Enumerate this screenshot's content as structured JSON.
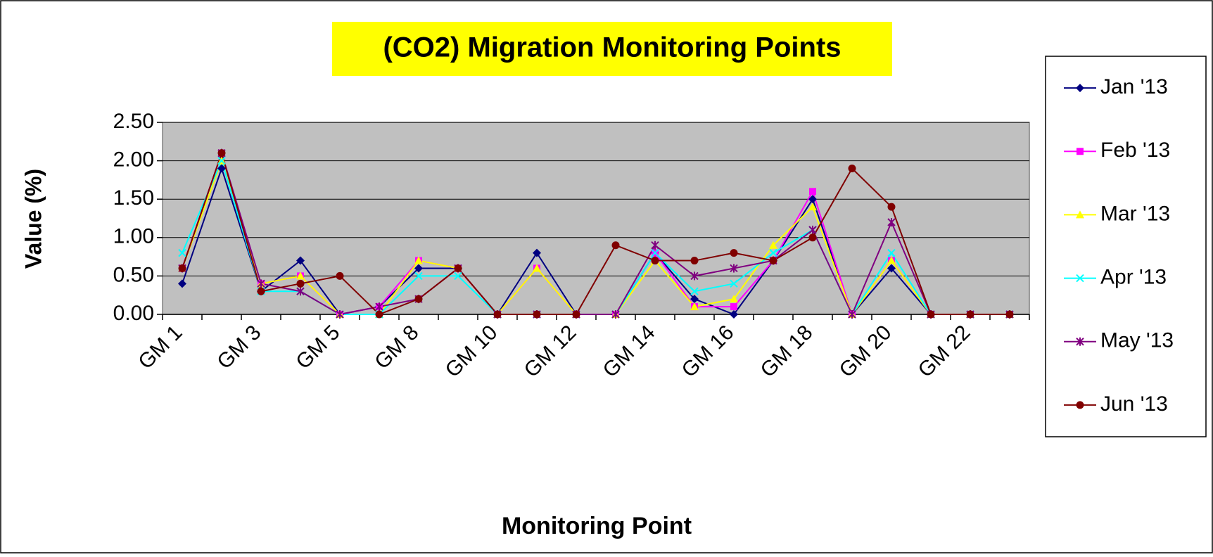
{
  "chart_data": {
    "type": "line",
    "title": "(CO2) Migration Monitoring Points",
    "x_label": "Monitoring Point",
    "y_label": "Value (%)",
    "categories": [
      "GM 1",
      null,
      "GM 3",
      null,
      "GM 5",
      null,
      "GM 8",
      null,
      "GM 10",
      null,
      "GM 12",
      null,
      "GM 14",
      null,
      "GM 16",
      null,
      "GM 18",
      null,
      "GM 20",
      null,
      "GM 22",
      null
    ],
    "ylim": [
      0,
      2.5
    ],
    "yticks": [
      {
        "value": 0,
        "label": "0.00"
      },
      {
        "value": 0.5,
        "label": "0.50"
      },
      {
        "value": 1,
        "label": "1.00"
      },
      {
        "value": 1.5,
        "label": "1.50"
      },
      {
        "value": 2,
        "label": "2.00"
      },
      {
        "value": 2.5,
        "label": "2.50"
      }
    ],
    "grid": true,
    "legend": "right",
    "series": [
      {
        "name": "Jan '13",
        "color": "#000080",
        "marker": "diamond",
        "values": [
          0.4,
          1.9,
          0.3,
          0.7,
          0,
          0.1,
          0.6,
          0.6,
          0,
          0.8,
          0,
          0,
          0.8,
          0.2,
          0,
          0.7,
          1.5,
          0,
          0.6,
          0,
          0,
          0
        ]
      },
      {
        "name": "Feb '13",
        "color": "#FF00FF",
        "marker": "square",
        "values": [
          0.6,
          2.1,
          0.4,
          0.5,
          0,
          0.1,
          0.7,
          0.6,
          0,
          0.6,
          0,
          0,
          0.8,
          0.1,
          0.1,
          0.7,
          1.6,
          0,
          0.7,
          0,
          0,
          0
        ]
      },
      {
        "name": "Mar '13",
        "color": "#FFFF00",
        "marker": "triangle",
        "values": [
          0.6,
          2.0,
          0.4,
          0.5,
          0,
          0,
          0.7,
          0.6,
          0,
          0.6,
          0,
          0,
          0.7,
          0.1,
          0.2,
          0.9,
          1.4,
          0,
          0.7,
          0,
          0,
          0
        ]
      },
      {
        "name": "Apr '13",
        "color": "#00FFFF",
        "marker": "x",
        "values": [
          0.8,
          2.0,
          0.3,
          0.3,
          0,
          0,
          0.5,
          0.5,
          0,
          0,
          0,
          0,
          0.8,
          0.3,
          0.4,
          0.8,
          1.1,
          0,
          0.8,
          0,
          0,
          0
        ]
      },
      {
        "name": "May '13",
        "color": "#800080",
        "marker": "star",
        "values": [
          0.6,
          2.1,
          0.4,
          0.3,
          0,
          0.1,
          0.2,
          0.6,
          0,
          0,
          0,
          0,
          0.9,
          0.5,
          0.6,
          0.7,
          1.1,
          0,
          1.2,
          0,
          0,
          0
        ]
      },
      {
        "name": "Jun '13",
        "color": "#800000",
        "marker": "circle",
        "values": [
          0.6,
          2.1,
          0.3,
          0.4,
          0.5,
          0,
          0.2,
          0.6,
          0,
          0,
          0,
          0.9,
          0.7,
          0.7,
          0.8,
          0.7,
          1.0,
          1.9,
          1.4,
          0,
          0,
          0
        ]
      }
    ]
  }
}
